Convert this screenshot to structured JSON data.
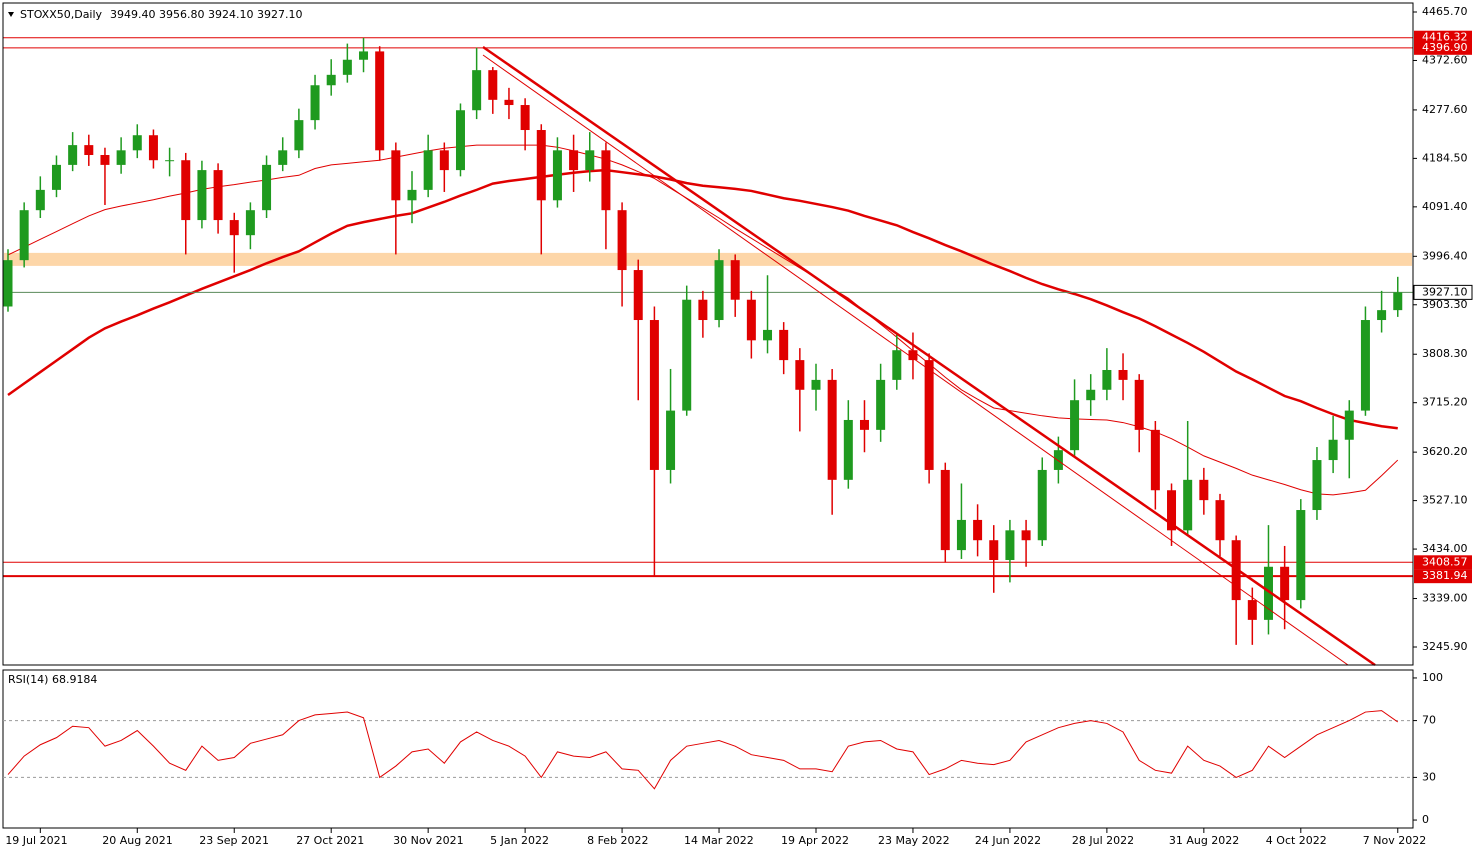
{
  "chart_data": [
    {
      "type": "candlestick",
      "title": "STOXX50,Daily",
      "subtitle": "3949.40 3956.80 3924.10 3927.10",
      "categories": [
        null,
        null,
        "19 Jul 2021",
        null,
        null,
        null,
        null,
        null,
        "20 Aug 2021",
        null,
        null,
        null,
        null,
        null,
        "23 Sep 2021",
        null,
        null,
        null,
        null,
        null,
        "27 Oct 2021",
        null,
        null,
        null,
        null,
        null,
        "30 Nov 2021",
        null,
        null,
        null,
        null,
        null,
        "5 Jan 2022",
        null,
        null,
        null,
        null,
        null,
        "8 Feb 2022",
        null,
        null,
        null,
        null,
        null,
        "14 Mar 2022",
        null,
        null,
        null,
        null,
        null,
        "19 Apr 2022",
        null,
        null,
        null,
        null,
        null,
        "23 May 2022",
        null,
        null,
        null,
        null,
        null,
        "24 Jun 2022",
        null,
        null,
        null,
        null,
        null,
        "28 Jul 2022",
        null,
        null,
        null,
        null,
        null,
        "31 Aug 2022",
        null,
        null,
        null,
        null,
        null,
        "4 Oct 2022",
        null,
        null,
        null,
        null,
        null,
        "7 Nov 2022"
      ],
      "open": [
        3900,
        3989,
        4085,
        4124,
        4172,
        4210,
        4191,
        4172,
        4200,
        4229,
        4181,
        4181,
        4066,
        4162,
        4066,
        4037,
        4085,
        4172,
        4200,
        4258,
        4325,
        4345,
        4374,
        4390,
        4200,
        4104,
        4124,
        4200,
        4162,
        4277,
        4354,
        4297,
        4287,
        4239,
        4104,
        4200,
        4162,
        4200,
        4085,
        3970,
        3874,
        3586,
        3700,
        3913,
        3874,
        3989,
        3913,
        3835,
        3855,
        3797,
        3740,
        3759,
        3567,
        3682,
        3663,
        3759,
        3816,
        3797,
        3586,
        3432,
        3490,
        3451,
        3413,
        3470,
        3451,
        3586,
        3624,
        3720,
        3740,
        3778,
        3759,
        3663,
        3547,
        3470,
        3567,
        3528,
        3451,
        3336,
        3298,
        3400,
        3336,
        3509,
        3605,
        3644,
        3700,
        3874,
        3893
      ],
      "high": [
        4010,
        4100,
        4150,
        4190,
        4235,
        4230,
        4205,
        4225,
        4250,
        4240,
        4205,
        4195,
        4180,
        4175,
        4080,
        4100,
        4190,
        4225,
        4280,
        4345,
        4375,
        4405,
        4416,
        4400,
        4215,
        4160,
        4230,
        4215,
        4290,
        4397,
        4360,
        4320,
        4300,
        4250,
        4225,
        4230,
        4235,
        4215,
        4100,
        3990,
        3900,
        3780,
        3940,
        3930,
        4010,
        4000,
        3930,
        3960,
        3870,
        3820,
        3790,
        3780,
        3720,
        3720,
        3790,
        3850,
        3850,
        3810,
        3600,
        3560,
        3520,
        3480,
        3490,
        3490,
        3610,
        3650,
        3760,
        3770,
        3820,
        3810,
        3770,
        3680,
        3560,
        3680,
        3590,
        3540,
        3460,
        3360,
        3480,
        3440,
        3530,
        3630,
        3690,
        3720,
        3900,
        3930,
        3957
      ],
      "low": [
        3890,
        3975,
        4070,
        4110,
        4160,
        4170,
        4095,
        4155,
        4185,
        4165,
        4150,
        4000,
        4050,
        4040,
        3965,
        4010,
        4070,
        4160,
        4185,
        4240,
        4305,
        4330,
        4350,
        4180,
        4000,
        4060,
        4110,
        4120,
        4150,
        4260,
        4270,
        4260,
        4200,
        4000,
        4090,
        4120,
        4140,
        4010,
        3900,
        3720,
        3382,
        3560,
        3690,
        3840,
        3860,
        3880,
        3800,
        3810,
        3770,
        3660,
        3700,
        3500,
        3550,
        3620,
        3640,
        3740,
        3760,
        3560,
        3408,
        3415,
        3420,
        3350,
        3370,
        3400,
        3440,
        3560,
        3610,
        3690,
        3720,
        3720,
        3620,
        3510,
        3440,
        3460,
        3500,
        3420,
        3250,
        3250,
        3270,
        3280,
        3320,
        3490,
        3580,
        3570,
        3690,
        3850,
        3880
      ],
      "close": [
        3989,
        4085,
        4124,
        4172,
        4210,
        4191,
        4172,
        4200,
        4229,
        4181,
        4181,
        4066,
        4162,
        4066,
        4037,
        4085,
        4172,
        4200,
        4258,
        4325,
        4345,
        4374,
        4390,
        4200,
        4104,
        4124,
        4200,
        4162,
        4277,
        4354,
        4297,
        4287,
        4239,
        4104,
        4200,
        4162,
        4200,
        4085,
        3970,
        3874,
        3586,
        3700,
        3913,
        3874,
        3989,
        3913,
        3835,
        3855,
        3797,
        3740,
        3759,
        3567,
        3682,
        3663,
        3759,
        3816,
        3797,
        3586,
        3432,
        3490,
        3451,
        3413,
        3470,
        3451,
        3586,
        3624,
        3720,
        3740,
        3778,
        3759,
        3663,
        3547,
        3470,
        3567,
        3528,
        3451,
        3336,
        3298,
        3400,
        3336,
        3509,
        3605,
        3644,
        3700,
        3874,
        3893,
        3927
      ],
      "bull_color": "#1f9a1f",
      "bear_color": "#e00000",
      "series": [
        {
          "color": "#e00000",
          "line_width": 2.5,
          "values": [
            3730,
            3752,
            3774,
            3796,
            3818,
            3840,
            3858,
            3871,
            3883,
            3896,
            3908,
            3921,
            3934,
            3946,
            3958,
            3970,
            3983,
            3995,
            4006,
            4023,
            4040,
            4055,
            4062,
            4068,
            4074,
            4079,
            4090,
            4101,
            4113,
            4124,
            4136,
            4141,
            4145,
            4149,
            4153,
            4157,
            4160,
            4162,
            4158,
            4154,
            4150,
            4144,
            4137,
            4132,
            4129,
            4126,
            4122,
            4115,
            4108,
            4103,
            4097,
            4091,
            4084,
            4074,
            4065,
            4056,
            4043,
            4031,
            4018,
            4006,
            3993,
            3980,
            3968,
            3955,
            3943,
            3933,
            3924,
            3914,
            3902,
            3889,
            3877,
            3862,
            3846,
            3830,
            3813,
            3794,
            3775,
            3760,
            3744,
            3728,
            3718,
            3705,
            3693,
            3682,
            3676,
            3670,
            3666
          ]
        },
        {
          "color": "#e00000",
          "line_width": 1,
          "values": [
            3999,
            4014,
            4029,
            4044,
            4059,
            4074,
            4086,
            4093,
            4099,
            4105,
            4112,
            4118,
            4125,
            4130,
            4134,
            4139,
            4143,
            4148,
            4152,
            4165,
            4172,
            4175,
            4178,
            4181,
            4187,
            4193,
            4199,
            4204,
            4207,
            4210,
            4210,
            4210,
            4210,
            4210,
            4206,
            4199,
            4191,
            4183,
            4172,
            4159,
            4146,
            4127,
            4108,
            4089,
            4070,
            4050,
            4031,
            4012,
            3993,
            3974,
            3955,
            3935,
            3916,
            3891,
            3866,
            3841,
            3815,
            3790,
            3764,
            3740,
            3722,
            3705,
            3700,
            3695,
            3690,
            3686,
            3684,
            3683,
            3682,
            3677,
            3669,
            3659,
            3646,
            3630,
            3613,
            3601,
            3589,
            3576,
            3567,
            3558,
            3548,
            3540,
            3538,
            3542,
            3547,
            3575,
            3605
          ]
        }
      ],
      "zone": [
        3978,
        4003
      ],
      "zone_color": "#fdd6a8",
      "levels": [
        {
          "price": 4416.32,
          "color": "#e00000"
        },
        {
          "price": {
            "value": 4396.9,
            "label": "4396.90"
          },
          "color": "#e00000"
        },
        {
          "price": 3408.57,
          "color": "#e00000"
        },
        {
          "price": 3381.94,
          "color": "#e00000"
        },
        {
          "price": {
            "value": 3927.1,
            "label": "3927.10"
          },
          "color": "#5a8a5a"
        }
      ],
      "ylim": [
        3211.3,
        4483.0
      ],
      "yticks": [
        {
          "value": 3245.9,
          "label": "3245.90"
        },
        {
          "value": 3339,
          "label": "3339.00"
        },
        {
          "value": 3434,
          "label": "3434.00"
        },
        {
          "value": 3527.1,
          "label": "3527.10"
        },
        {
          "value": 3620.2,
          "label": "3620.20"
        },
        {
          "value": 3715.2,
          "label": "3715.20"
        },
        {
          "value": 3808.3,
          "label": "3808.30"
        },
        {
          "value": 3903.3,
          "label": "3903.30"
        },
        {
          "value": 3996.4,
          "label": "3996.40"
        },
        {
          "value": 4091.4,
          "label": "4091.40"
        },
        {
          "value": 4184.5,
          "label": "4184.50"
        },
        {
          "value": 4277.6,
          "label": "4277.60"
        },
        {
          "value": 4372.6,
          "label": "4372.60"
        },
        {
          "value": 4465.7,
          "label": "4465.70"
        }
      ]
    },
    {
      "type": "line",
      "title": "RSI(14) 68.9184",
      "color": "#e00000",
      "values": [
        32,
        45,
        53,
        58,
        66,
        65,
        52,
        56,
        63,
        52,
        40,
        35,
        52,
        42,
        44,
        54,
        57,
        60,
        70,
        74,
        75,
        76,
        72,
        30,
        38,
        48,
        50,
        40,
        55,
        62,
        56,
        52,
        45,
        30,
        48,
        45,
        44,
        48,
        36,
        35,
        22,
        42,
        52,
        54,
        56,
        52,
        46,
        44,
        42,
        36,
        36,
        34,
        52,
        55,
        56,
        50,
        48,
        32,
        36,
        42,
        40,
        39,
        42,
        55,
        60,
        65,
        68,
        70,
        68,
        62,
        42,
        35,
        33,
        52,
        42,
        38,
        30,
        35,
        52,
        44,
        52,
        60,
        65,
        70,
        76,
        77,
        69
      ],
      "ylim": [
        -5.6,
        105.6
      ],
      "yticks": [
        0,
        30,
        70,
        100
      ],
      "dashed_levels": [
        30,
        70
      ]
    }
  ]
}
